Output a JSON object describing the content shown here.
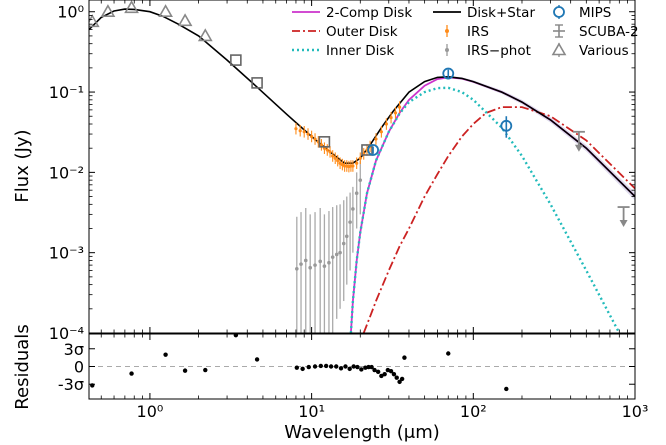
{
  "chart_data": [
    {
      "type": "line",
      "panel": "main",
      "xlabel": "Wavelength (μm)",
      "ylabel": "Flux (Jy)",
      "x_scale": "log",
      "y_scale": "log",
      "xlim": [
        0.42,
        1000
      ],
      "ylim": [
        0.0001,
        1.4
      ],
      "x_ticks": [
        {
          "value": 1,
          "label": "10⁰"
        },
        {
          "value": 10,
          "label": "10¹"
        },
        {
          "value": 100,
          "label": "10²"
        },
        {
          "value": 1000,
          "label": "10³"
        }
      ],
      "y_ticks": [
        {
          "value": 1,
          "label": "10⁰"
        },
        {
          "value": 0.1,
          "label": "10⁻¹"
        },
        {
          "value": 0.01,
          "label": "10⁻²"
        },
        {
          "value": 0.001,
          "label": "10⁻³"
        },
        {
          "value": 0.0001,
          "label": "10⁻⁴"
        }
      ],
      "legend": [
        {
          "label": "2-Comp Disk",
          "color": "#cc33cc",
          "style": "solid"
        },
        {
          "label": "Outer Disk",
          "color": "#cc2222",
          "style": "dash-dot"
        },
        {
          "label": "Inner Disk",
          "color": "#22bbbb",
          "style": "dotted"
        },
        {
          "label": "Disk+Star",
          "color": "#000000",
          "style": "solid"
        },
        {
          "label": "IRS",
          "color": "#ff8c1a",
          "style": "errorbar"
        },
        {
          "label": "IRS−phot",
          "color": "#999999",
          "style": "errorbar"
        },
        {
          "label": "MIPS",
          "color": "#1f77b4",
          "style": "circle"
        },
        {
          "label": "SCUBA-2",
          "color": "#888888",
          "style": "errorbar"
        },
        {
          "label": "Various",
          "color": "#888888",
          "style": "triangle"
        }
      ],
      "legend_position": "top-right",
      "series": [
        {
          "name": "Disk+Star",
          "color": "#000000",
          "x": [
            0.42,
            0.5,
            0.6,
            0.7,
            0.8,
            1.0,
            1.2,
            1.5,
            2.0,
            3.0,
            4.5,
            7,
            10,
            13,
            16,
            18,
            20,
            23,
            27,
            32,
            40,
            50,
            60,
            70,
            85,
            100,
            150,
            200,
            300,
            500,
            1000
          ],
          "y": [
            0.6,
            0.85,
            1.02,
            1.08,
            1.07,
            1.0,
            0.88,
            0.7,
            0.5,
            0.25,
            0.12,
            0.053,
            0.028,
            0.018,
            0.013,
            0.013,
            0.015,
            0.022,
            0.036,
            0.058,
            0.1,
            0.135,
            0.152,
            0.155,
            0.148,
            0.135,
            0.1,
            0.075,
            0.045,
            0.02,
            0.005
          ]
        },
        {
          "name": "2-Comp Disk",
          "color": "#cc33cc",
          "x": [
            17.5,
            18,
            19,
            20,
            22,
            25,
            30,
            35,
            40,
            50,
            60,
            70,
            85,
            100,
            150,
            200,
            300,
            500,
            1000
          ],
          "y": [
            0.0001,
            0.00025,
            0.0008,
            0.0018,
            0.0055,
            0.014,
            0.032,
            0.055,
            0.08,
            0.12,
            0.145,
            0.152,
            0.147,
            0.134,
            0.1,
            0.075,
            0.045,
            0.02,
            0.005
          ]
        },
        {
          "name": "Outer Disk",
          "color": "#cc2222",
          "x": [
            21,
            23,
            25,
            30,
            35,
            40,
            50,
            60,
            70,
            85,
            100,
            120,
            150,
            200,
            300,
            500,
            1000
          ],
          "y": [
            0.0001,
            0.00016,
            0.00025,
            0.0006,
            0.0012,
            0.002,
            0.005,
            0.0095,
            0.016,
            0.028,
            0.04,
            0.055,
            0.065,
            0.065,
            0.05,
            0.025,
            0.0063
          ]
        },
        {
          "name": "Inner Disk",
          "color": "#22bbbb",
          "x": [
            17.5,
            18,
            19,
            20,
            22,
            25,
            30,
            35,
            40,
            50,
            60,
            70,
            85,
            100,
            150,
            200,
            300,
            500,
            800
          ],
          "y": [
            0.0001,
            0.00025,
            0.0008,
            0.0018,
            0.0055,
            0.014,
            0.032,
            0.054,
            0.075,
            0.1,
            0.112,
            0.113,
            0.1,
            0.08,
            0.036,
            0.016,
            0.004,
            0.0006,
            0.0001
          ]
        }
      ],
      "points": {
        "IRS": {
          "x": [
            8.0,
            8.5,
            9.0,
            9.5,
            10,
            10.5,
            11,
            11.5,
            12,
            12.5,
            13,
            13.5,
            14,
            14.5,
            15,
            15.5,
            16,
            16.5,
            17,
            17.5,
            18,
            19,
            20,
            21,
            22,
            23,
            25,
            27,
            29,
            31,
            33,
            35
          ],
          "y": [
            0.035,
            0.033,
            0.032,
            0.03,
            0.028,
            0.026,
            0.024,
            0.022,
            0.02,
            0.019,
            0.018,
            0.016,
            0.015,
            0.014,
            0.013,
            0.0125,
            0.012,
            0.012,
            0.0118,
            0.012,
            0.012,
            0.013,
            0.015,
            0.017,
            0.019,
            0.021,
            0.026,
            0.032,
            0.04,
            0.048,
            0.055,
            0.065
          ],
          "err_frac": 0.18
        },
        "IRS-phot": {
          "x": [
            8.1,
            8.6,
            9.2,
            9.8,
            10.5,
            11.3,
            12.0,
            12.8,
            13.5,
            14.3,
            15.0,
            15.8,
            16.5,
            17.3,
            18.0,
            19.0,
            20.0
          ],
          "y": [
            0.00063,
            0.00072,
            0.0008,
            0.00065,
            0.0007,
            0.00078,
            0.00068,
            0.00075,
            0.00088,
            0.00095,
            0.001,
            0.0013,
            0.0016,
            0.0024,
            0.0035,
            0.0055,
            0.008
          ],
          "lo": [
            0.0001,
            0.0001,
            0.0001,
            0.0001,
            0.0001,
            0.0001,
            0.0001,
            0.0001,
            0.0001,
            0.00015,
            0.0002,
            0.00025,
            0.0004,
            0.0006,
            0.001,
            0.002,
            0.003
          ],
          "hi": [
            0.0028,
            0.0032,
            0.0036,
            0.003,
            0.0032,
            0.0036,
            0.003,
            0.0033,
            0.0037,
            0.0039,
            0.004,
            0.0045,
            0.005,
            0.0056,
            0.0066,
            0.01,
            0.014
          ]
        },
        "MIPS": {
          "x": [
            24,
            70,
            160
          ],
          "y": [
            0.019,
            0.17,
            0.038
          ],
          "lo": [
            0.017,
            0.15,
            0.027
          ],
          "hi": [
            0.021,
            0.19,
            0.05
          ]
        },
        "SCUBA-2": {
          "x": [
            450,
            850
          ],
          "y": [
            0.032,
            0.0037
          ],
          "upper_limit": [
            true,
            true
          ]
        },
        "Various-triangles": {
          "x": [
            0.44,
            0.55,
            0.77,
            1.25,
            1.65,
            2.2
          ],
          "y": [
            0.75,
            1.0,
            1.12,
            1.0,
            0.77,
            0.5
          ]
        },
        "Various-squares": {
          "x": [
            3.4,
            4.6,
            12,
            22
          ],
          "y": [
            0.25,
            0.13,
            0.024,
            0.019
          ]
        }
      }
    },
    {
      "type": "scatter",
      "panel": "residuals",
      "xlabel": "Wavelength (μm)",
      "ylabel": "Residuals",
      "x_scale": "log",
      "ylim": [
        -5.5,
        5.5
      ],
      "y_ticks": [
        {
          "value": 3,
          "label": "3σ"
        },
        {
          "value": 0,
          "label": "0"
        },
        {
          "value": -3,
          "label": "-3σ"
        }
      ],
      "x": [
        0.44,
        0.77,
        1.25,
        1.65,
        2.2,
        3.4,
        4.6,
        8.1,
        8.8,
        9.6,
        10.5,
        11.4,
        12.3,
        13.2,
        14.2,
        15.2,
        16.2,
        17.2,
        18.2,
        19.2,
        20.3,
        21.5,
        22.5,
        23.5,
        24.5,
        25.8,
        27.0,
        28.3,
        29.6,
        31.0,
        32.3,
        33.6,
        35.0,
        36.3,
        37.5,
        70,
        160
      ],
      "y": [
        -3.2,
        -1.2,
        2.0,
        -0.7,
        -0.6,
        5.3,
        1.2,
        -0.2,
        -0.4,
        -0.1,
        0.0,
        0.1,
        0.1,
        0.0,
        0.0,
        -0.3,
        0.0,
        -0.4,
        0.0,
        -0.1,
        -0.5,
        -0.2,
        -0.1,
        -0.1,
        -0.6,
        -0.9,
        -1.6,
        -1.3,
        -0.6,
        -0.8,
        -1.3,
        -1.9,
        -2.6,
        -2.1,
        1.5,
        2.2,
        -3.8
      ]
    }
  ]
}
